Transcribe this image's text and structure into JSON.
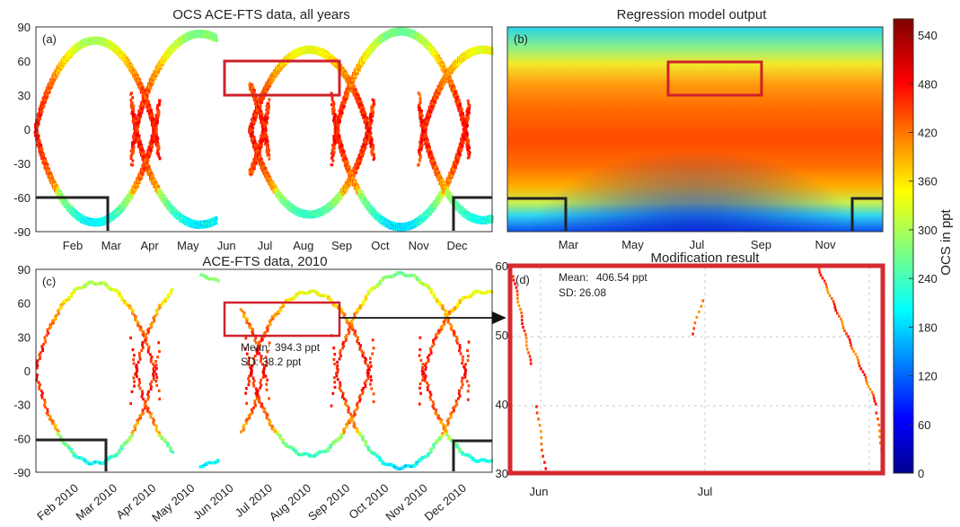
{
  "chart_data": [
    {
      "id": "a",
      "type": "scatter",
      "panel_label": "(a)",
      "title": "OCS ACE-FTS data, all years",
      "xlabel": "",
      "ylabel": "",
      "x_ticks": [
        "Feb",
        "Mar",
        "Apr",
        "May",
        "Jun",
        "Jul",
        "Aug",
        "Sep",
        "Oct",
        "Nov",
        "Dec"
      ],
      "y_ticks": [
        90,
        60,
        30,
        0,
        -30,
        -60,
        -90
      ],
      "ylim": [
        -90,
        90
      ],
      "x_unit": "month of year",
      "xlim": [
        1.0,
        12.3
      ],
      "tracks_description": "dense occultation latitude tracks colored by OCS (ppt)",
      "highlight_box": {
        "x": [
          6.0,
          9.0
        ],
        "y": [
          30,
          60
        ],
        "color": "#d0202a"
      },
      "polar_boxes": [
        {
          "x": [
            1.0,
            2.8
          ],
          "y": [
            -90,
            -60
          ]
        },
        {
          "x": [
            11.0,
            12.3
          ],
          "y": [
            -90,
            -60
          ]
        }
      ]
    },
    {
      "id": "b",
      "type": "heatmap",
      "panel_label": "(b)",
      "title": "Regression model output",
      "x_ticks": [
        "Mar",
        "May",
        "Jul",
        "Sep",
        "Nov"
      ],
      "ylim": [
        -90,
        90
      ],
      "highlight_box": {
        "x": [
          6.0,
          9.0
        ],
        "y": [
          30,
          60
        ],
        "color": "#d0202a"
      },
      "polar_boxes": [
        {
          "x": [
            1.0,
            2.8
          ],
          "y": [
            -90,
            -60
          ]
        },
        {
          "x": [
            11.0,
            12.3
          ],
          "y": [
            -90,
            -60
          ]
        }
      ]
    },
    {
      "id": "c",
      "type": "scatter",
      "panel_label": "(c)",
      "title": "ACE-FTS data, 2010",
      "x_ticks": [
        "Feb 2010",
        "Mar 2010",
        "Apr 2010",
        "May 2010",
        "Jun 2010",
        "Jul 2010",
        "Aug 2010",
        "Sep 2010",
        "Oct 2010",
        "Nov 2010",
        "Dec 2010"
      ],
      "y_ticks": [
        90,
        60,
        30,
        0,
        -30,
        -60,
        -90
      ],
      "ylim": [
        -90,
        90
      ],
      "highlight_box": {
        "x": [
          6.0,
          9.0
        ],
        "y": [
          30,
          60
        ],
        "color": "#d0202a"
      },
      "stats": {
        "mean_label": "Mean:",
        "mean_value": "394.3 ppt",
        "sd_label": "SD:",
        "sd_value": "38.2 ppt"
      },
      "polar_boxes": [
        {
          "x": [
            1.0,
            2.8
          ],
          "y": [
            -90,
            -60
          ]
        },
        {
          "x": [
            11.0,
            12.3
          ],
          "y": [
            -90,
            -60
          ]
        }
      ]
    },
    {
      "id": "d",
      "type": "scatter",
      "panel_label": "(d)",
      "title": "Modification result",
      "x_ticks": [
        "Jun",
        "Jul"
      ],
      "y_ticks": [
        60,
        50,
        40,
        30
      ],
      "ylim": [
        30,
        60
      ],
      "stats": {
        "mean_label": "Mean:",
        "mean_value": "406.54 ppt",
        "sd_label": "SD:",
        "sd_value": "26.08"
      }
    }
  ],
  "colorbar": {
    "label": "OCS in ppt",
    "ticks": [
      0,
      60,
      120,
      180,
      240,
      300,
      360,
      420,
      480,
      540
    ],
    "range": [
      0,
      560
    ],
    "colormap": "jet"
  }
}
